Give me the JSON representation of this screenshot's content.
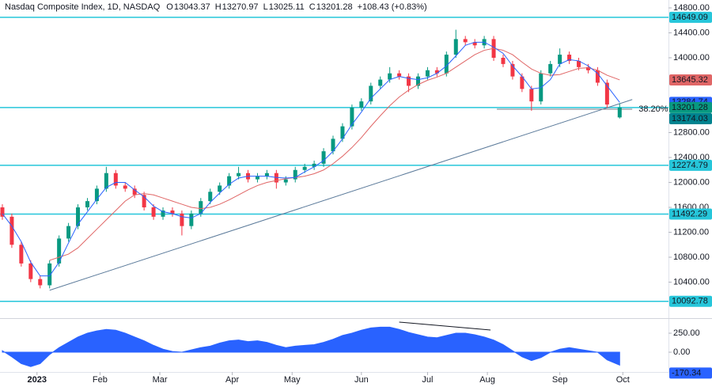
{
  "chart_data": {
    "type": "candlestick",
    "header": {
      "symbol": "Nasdaq Composite Index, 1D, NASDAQ",
      "ohlc": [
        {
          "key": "O",
          "value": 13043.37
        },
        {
          "key": "H",
          "value": 13270.97
        },
        {
          "key": "L",
          "value": 13025.11
        },
        {
          "key": "C",
          "value": 13201.28
        }
      ],
      "change": "+108.43 (+0.83%)"
    },
    "x": [
      0,
      3,
      6,
      9,
      12,
      15,
      18,
      21,
      24,
      27,
      30,
      33,
      36,
      39,
      42,
      45,
      48,
      51,
      54,
      57,
      60,
      63,
      66,
      69,
      72,
      75,
      78,
      81,
      84,
      87,
      90,
      93,
      96,
      99,
      102,
      105,
      108,
      111,
      114,
      117,
      120,
      123,
      126,
      129,
      132,
      135,
      138,
      141,
      144,
      147,
      150,
      153,
      156,
      159,
      162,
      165,
      168,
      171,
      174,
      177,
      180,
      183,
      186,
      189,
      192,
      196
    ],
    "open": [
      11600,
      11450,
      11000,
      10700,
      10450,
      10350,
      10700,
      11100,
      11300,
      11600,
      11700,
      11900,
      12150,
      11950,
      11900,
      11800,
      11600,
      11450,
      11550,
      11500,
      11300,
      11500,
      11700,
      11850,
      11950,
      12100,
      12150,
      12050,
      12100,
      12150,
      12000,
      12050,
      12200,
      12250,
      12300,
      12500,
      12700,
      12900,
      13200,
      13300,
      13550,
      13650,
      13750,
      13700,
      13550,
      13700,
      13800,
      13750,
      14050,
      14300,
      14250,
      14200,
      14300,
      14000,
      13900,
      13700,
      13500,
      13300,
      13750,
      13900,
      14050,
      13950,
      13850,
      13800,
      13600,
      13043.37
    ],
    "high": [
      11650,
      11500,
      11050,
      10750,
      10500,
      10750,
      11150,
      11350,
      11650,
      11750,
      11950,
      12250,
      12200,
      12000,
      11950,
      11850,
      11650,
      11600,
      11600,
      11550,
      11550,
      11750,
      11900,
      12000,
      12150,
      12250,
      12200,
      12150,
      12200,
      12200,
      12100,
      12250,
      12300,
      12350,
      12550,
      12750,
      12950,
      13250,
      13350,
      13600,
      13700,
      13850,
      13800,
      13750,
      13750,
      13850,
      13850,
      14100,
      14450,
      14350,
      14300,
      14350,
      14350,
      14050,
      13950,
      13750,
      13550,
      13800,
      13950,
      14150,
      14100,
      14000,
      13900,
      13850,
      13650,
      13270.97
    ],
    "low": [
      11400,
      10950,
      10650,
      10400,
      10300,
      10300,
      10650,
      11050,
      11250,
      11550,
      11650,
      11850,
      11900,
      11850,
      11750,
      11550,
      11400,
      11400,
      11450,
      11150,
      11250,
      11450,
      11650,
      11800,
      11900,
      12050,
      12000,
      12000,
      12050,
      11900,
      11950,
      12000,
      12150,
      12200,
      12250,
      12450,
      12650,
      12850,
      13150,
      13250,
      13500,
      13600,
      13650,
      13450,
      13500,
      13650,
      13700,
      13700,
      14000,
      14200,
      14150,
      14150,
      13950,
      13850,
      13650,
      13450,
      13150,
      13250,
      13700,
      13850,
      13900,
      13800,
      13750,
      13550,
      13200,
      13025.11
    ],
    "close": [
      11450,
      11000,
      10700,
      10450,
      10350,
      10700,
      11100,
      11300,
      11600,
      11700,
      11900,
      12150,
      11950,
      11900,
      11800,
      11600,
      11450,
      11550,
      11500,
      11300,
      11500,
      11700,
      11850,
      11950,
      12100,
      12150,
      12050,
      12100,
      12150,
      12000,
      12050,
      12200,
      12250,
      12300,
      12500,
      12700,
      12900,
      13200,
      13300,
      13550,
      13650,
      13750,
      13700,
      13550,
      13700,
      13800,
      13750,
      14050,
      14300,
      14250,
      14200,
      14300,
      14000,
      13900,
      13700,
      13500,
      13300,
      13750,
      13900,
      14050,
      13950,
      13850,
      13800,
      13600,
      13250,
      13201.28
    ],
    "up_color": "#089981",
    "down_color": "#f23645",
    "ma_fast": {
      "color": "#2962ff",
      "values": [
        11500,
        11300,
        11050,
        10720,
        10500,
        10500,
        10720,
        11030,
        11330,
        11530,
        11730,
        11920,
        12000,
        12000,
        11880,
        11770,
        11620,
        11530,
        11500,
        11450,
        11430,
        11500,
        11680,
        11830,
        11970,
        12070,
        12100,
        12100,
        12100,
        12080,
        12070,
        12080,
        12170,
        12250,
        12350,
        12500,
        12700,
        12930,
        13130,
        13350,
        13500,
        13650,
        13700,
        13670,
        13650,
        13680,
        13750,
        13870,
        14030,
        14200,
        14250,
        14250,
        14170,
        14070,
        13870,
        13700,
        13500,
        13520,
        13650,
        13900,
        13970,
        13950,
        13870,
        13750,
        13550,
        13284.74
      ]
    },
    "ma_slow": {
      "color": "#e06666",
      "values": [
        null,
        null,
        null,
        null,
        null,
        10750,
        10800,
        10850,
        10950,
        11100,
        11250,
        11400,
        11550,
        11700,
        11800,
        11820,
        11800,
        11750,
        11700,
        11650,
        11600,
        11580,
        11600,
        11650,
        11720,
        11800,
        11880,
        11950,
        12000,
        12030,
        12060,
        12080,
        12100,
        12140,
        12200,
        12300,
        12420,
        12560,
        12720,
        12900,
        13070,
        13230,
        13370,
        13480,
        13570,
        13640,
        13690,
        13750,
        13850,
        13950,
        14050,
        14120,
        14150,
        14120,
        14050,
        13930,
        13820,
        13750,
        13720,
        13730,
        13780,
        13830,
        13840,
        13800,
        13720,
        13645.32
      ]
    },
    "levels": [
      {
        "value": 14649.09,
        "color": "#26c6da"
      },
      {
        "value": 13201.28,
        "color": "#26c6da"
      },
      {
        "value": 12274.79,
        "color": "#26c6da"
      },
      {
        "value": 11492.29,
        "color": "#26c6da"
      },
      {
        "value": 10092.78,
        "color": "#26c6da"
      }
    ],
    "fib": {
      "value": 13174.03,
      "label": "38.20%",
      "x": [
        157,
        200
      ],
      "color": "#787b86",
      "box_color": "#00838f"
    },
    "trendline": {
      "x": [
        15,
        200
      ],
      "y": [
        10270,
        13330
      ],
      "color": "#5b7a9a"
    },
    "xlim": [
      -0.75,
      211.5
    ],
    "ylim": [
      9848,
      14927
    ],
    "yticks": [
      {
        "value": 14800,
        "label": "14800.00"
      },
      {
        "value": 14400,
        "label": "14400.00"
      },
      {
        "value": 14000,
        "label": "14000.00"
      },
      {
        "value": 12800,
        "label": "12800.00"
      },
      {
        "value": 12400,
        "label": "12400.00"
      },
      {
        "value": 12000,
        "label": "12000.00"
      },
      {
        "value": 11600,
        "label": "11600.00"
      },
      {
        "value": 11200,
        "label": "11200.00"
      },
      {
        "value": 10800,
        "label": "10800.00"
      },
      {
        "value": 10400,
        "label": "10400.00"
      }
    ],
    "xticks": [
      {
        "value": 11,
        "label": "2023"
      },
      {
        "value": 31,
        "label": "Feb"
      },
      {
        "value": 50,
        "label": "Mar"
      },
      {
        "value": 73,
        "label": "Apr"
      },
      {
        "value": 92,
        "label": "May"
      },
      {
        "value": 114,
        "label": "Jun"
      },
      {
        "value": 135,
        "label": "Jul"
      },
      {
        "value": 154,
        "label": "Aug"
      },
      {
        "value": 177,
        "label": "Sep"
      },
      {
        "value": 197,
        "label": "Oct"
      }
    ],
    "oscillator": {
      "type": "area",
      "color": "#2962ff",
      "values": [
        20,
        -60,
        -150,
        -190,
        -150,
        -30,
        60,
        130,
        200,
        250,
        280,
        300,
        290,
        250,
        200,
        150,
        90,
        40,
        10,
        0,
        30,
        60,
        80,
        120,
        150,
        160,
        140,
        150,
        130,
        90,
        60,
        80,
        90,
        100,
        130,
        170,
        220,
        250,
        290,
        320,
        330,
        330,
        300,
        260,
        230,
        200,
        190,
        220,
        250,
        250,
        230,
        200,
        160,
        100,
        20,
        -60,
        -110,
        -70,
        0,
        40,
        60,
        40,
        20,
        0,
        -100,
        -170.34
      ],
      "ylim": [
        -260,
        417
      ],
      "yticks": [
        {
          "value": 250,
          "label": "250.00"
        },
        {
          "value": 0,
          "label": "0.00"
        }
      ],
      "trendline": {
        "x": [
          126,
          155
        ],
        "y": [
          396,
          292
        ],
        "color": "#131722"
      }
    }
  }
}
